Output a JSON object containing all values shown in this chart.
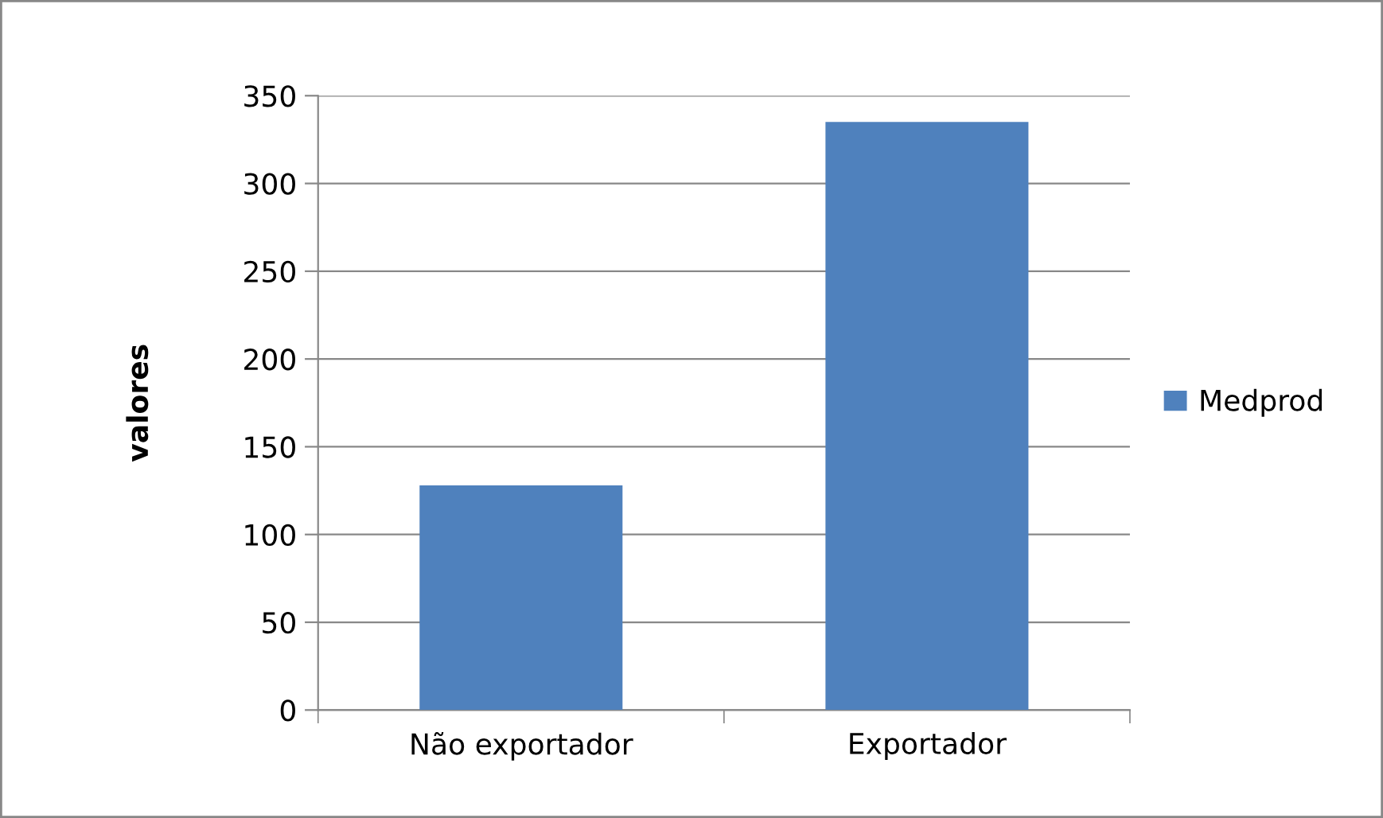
{
  "chart_data": {
    "type": "bar",
    "ylabel": "valores",
    "categories": [
      "Não exportador",
      "Exportador"
    ],
    "series": [
      {
        "name": "Medprod",
        "color": "#4f81bd",
        "values": [
          128,
          335
        ]
      }
    ],
    "ylim": [
      0,
      350
    ],
    "yticks": [
      0,
      50,
      100,
      150,
      200,
      250,
      300,
      350
    ],
    "grid": "y",
    "legend": "right"
  }
}
